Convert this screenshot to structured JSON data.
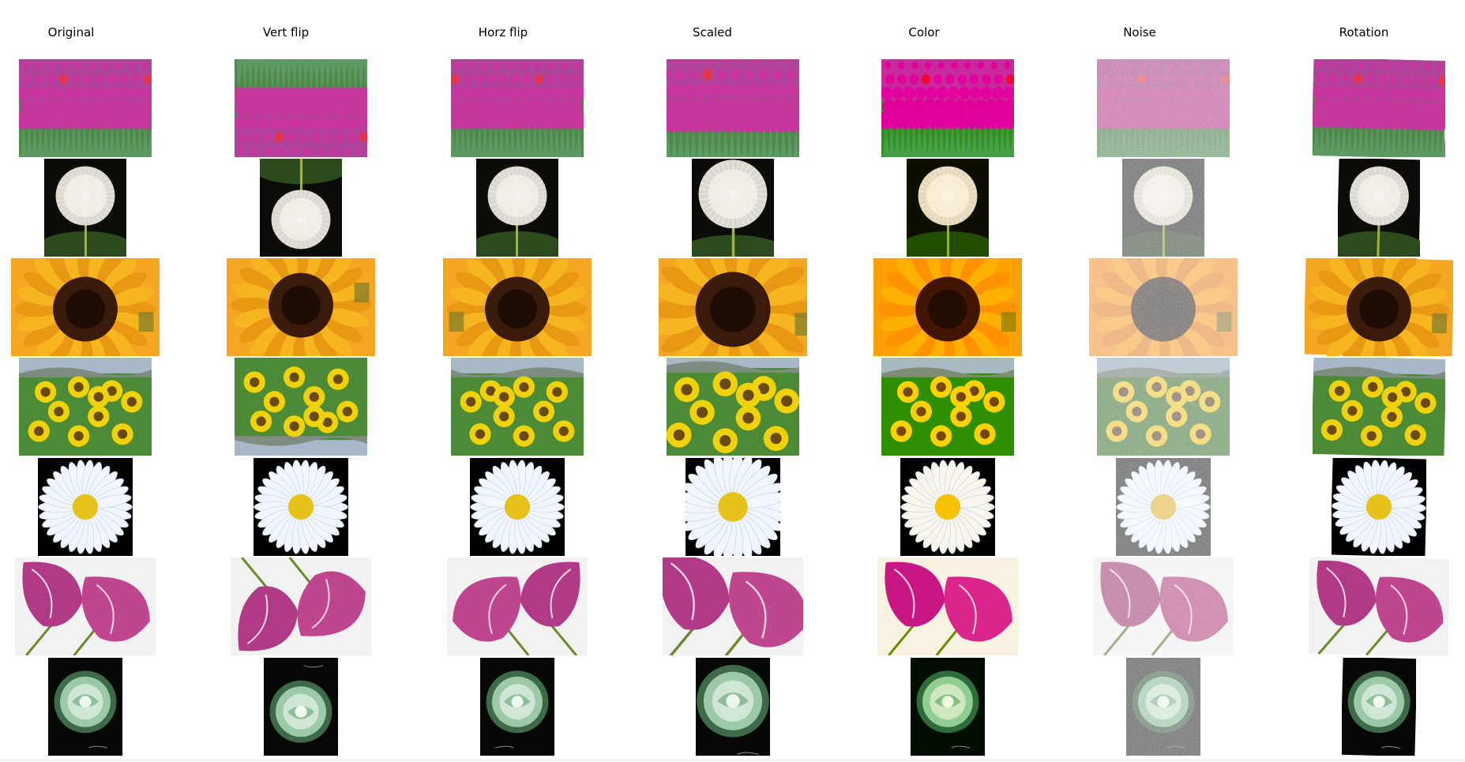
{
  "columns": [
    {
      "key": "original",
      "label": "Original"
    },
    {
      "key": "vflip",
      "label": "Vert flip"
    },
    {
      "key": "hflip",
      "label": "Horz flip"
    },
    {
      "key": "scaled",
      "label": "Scaled"
    },
    {
      "key": "color",
      "label": "Color"
    },
    {
      "key": "noise",
      "label": "Noise"
    },
    {
      "key": "rotation",
      "label": "Rotation"
    }
  ],
  "rows": [
    {
      "subject": "tulip-field"
    },
    {
      "subject": "dandelion"
    },
    {
      "subject": "sunflower-closeup"
    },
    {
      "subject": "sunflower-field"
    },
    {
      "subject": "daisy"
    },
    {
      "subject": "pink-tulips"
    },
    {
      "subject": "white-rose"
    }
  ],
  "colors": {
    "tulip_pink": "#c8349e",
    "leaf_green": "#4f8a4a",
    "sun_yellow": "#f5a623",
    "sun_center": "#3a1a08",
    "field_yellow": "#f0d20a",
    "sky": "#a8b8c8",
    "daisy_white": "#f2f6ff",
    "daisy_center": "#e6c21a",
    "rose_green": "#9cc9a8"
  }
}
